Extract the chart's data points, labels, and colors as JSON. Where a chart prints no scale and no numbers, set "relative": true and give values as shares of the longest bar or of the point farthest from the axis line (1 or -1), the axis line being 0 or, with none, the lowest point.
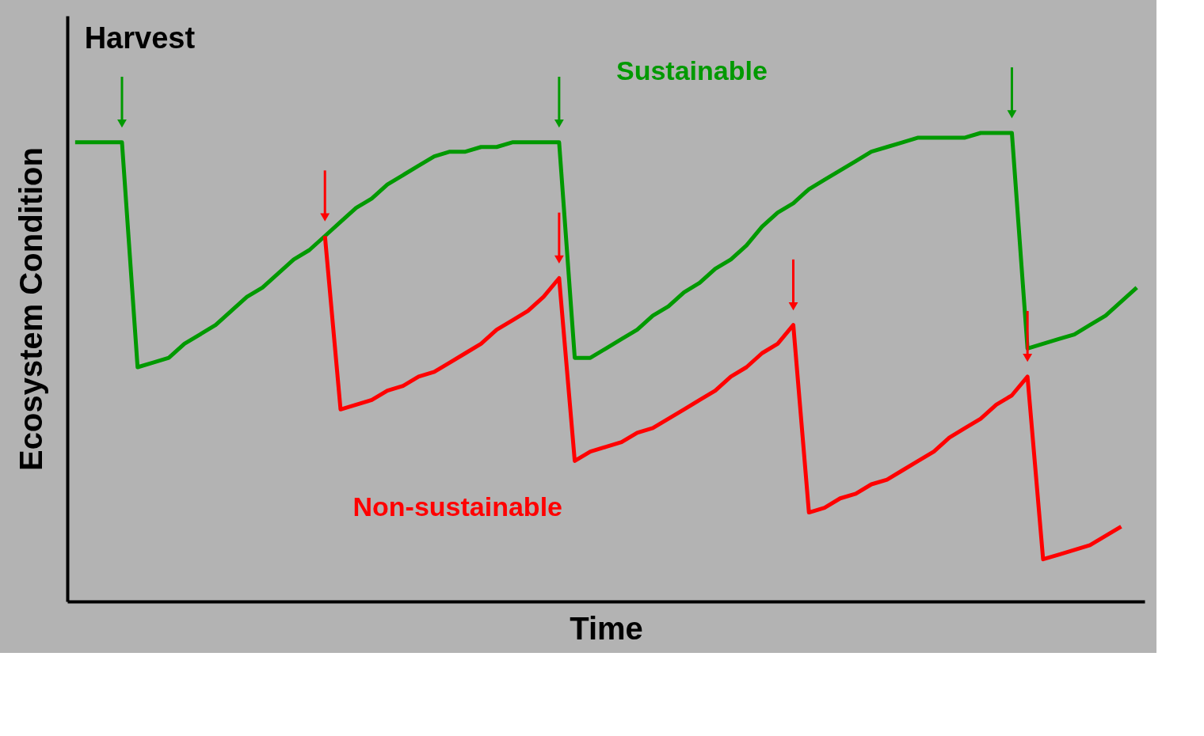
{
  "chart_data": {
    "type": "line",
    "relative": true,
    "legend": false,
    "line_style": "solid",
    "marker": "none",
    "xlabel": "Time",
    "ylabel": "Ecosystem Condition",
    "annotations": [
      "Harvest"
    ],
    "categories": [
      null,
      null,
      null,
      null,
      null,
      null,
      null,
      null,
      null,
      null,
      null,
      null,
      null,
      null,
      null,
      null,
      null,
      null,
      null,
      null,
      null,
      null,
      null,
      null,
      null,
      null,
      null,
      null,
      null,
      null,
      null,
      null,
      null,
      null,
      null,
      null,
      null,
      null,
      null,
      null,
      null,
      null,
      null,
      null,
      null,
      null,
      null,
      null,
      null,
      null,
      null,
      null,
      null,
      null,
      null,
      null,
      null,
      null,
      null,
      null,
      null,
      null,
      null,
      null,
      null,
      null,
      null,
      null,
      null
    ],
    "series": [
      {
        "name": "Sustainable",
        "color": "#009900",
        "values": [
          0.98,
          0.98,
          0.98,
          0.98,
          0.5,
          0.51,
          0.52,
          0.55,
          0.57,
          0.59,
          0.62,
          0.65,
          0.67,
          0.7,
          0.73,
          0.75,
          0.78,
          0.81,
          0.84,
          0.86,
          0.89,
          0.91,
          0.93,
          0.95,
          0.96,
          0.96,
          0.97,
          0.97,
          0.98,
          0.98,
          0.98,
          0.98,
          0.52,
          0.52,
          0.54,
          0.56,
          0.58,
          0.61,
          0.63,
          0.66,
          0.68,
          0.71,
          0.73,
          0.76,
          0.8,
          0.83,
          0.85,
          0.88,
          0.9,
          0.92,
          0.94,
          0.96,
          0.97,
          0.98,
          0.99,
          0.99,
          0.99,
          0.99,
          1.0,
          1.0,
          1.0,
          0.54,
          0.55,
          0.56,
          0.57,
          0.59,
          0.61,
          0.64,
          0.67
        ]
      },
      {
        "name": "Non-sustainable",
        "color": "#ff0000",
        "values": [
          null,
          null,
          null,
          null,
          null,
          null,
          null,
          null,
          null,
          null,
          null,
          null,
          null,
          null,
          null,
          null,
          0.78,
          0.41,
          0.42,
          0.43,
          0.45,
          0.46,
          0.48,
          0.49,
          0.51,
          0.53,
          0.55,
          0.58,
          0.6,
          0.62,
          0.65,
          0.69,
          0.3,
          0.32,
          0.33,
          0.34,
          0.36,
          0.37,
          0.39,
          0.41,
          0.43,
          0.45,
          0.48,
          0.5,
          0.53,
          0.55,
          0.59,
          0.19,
          0.2,
          0.22,
          0.23,
          0.25,
          0.26,
          0.28,
          0.3,
          0.32,
          0.35,
          0.37,
          0.39,
          0.42,
          0.44,
          0.48,
          0.09,
          0.1,
          0.11,
          0.12,
          0.14,
          0.16,
          null
        ]
      }
    ]
  }
}
